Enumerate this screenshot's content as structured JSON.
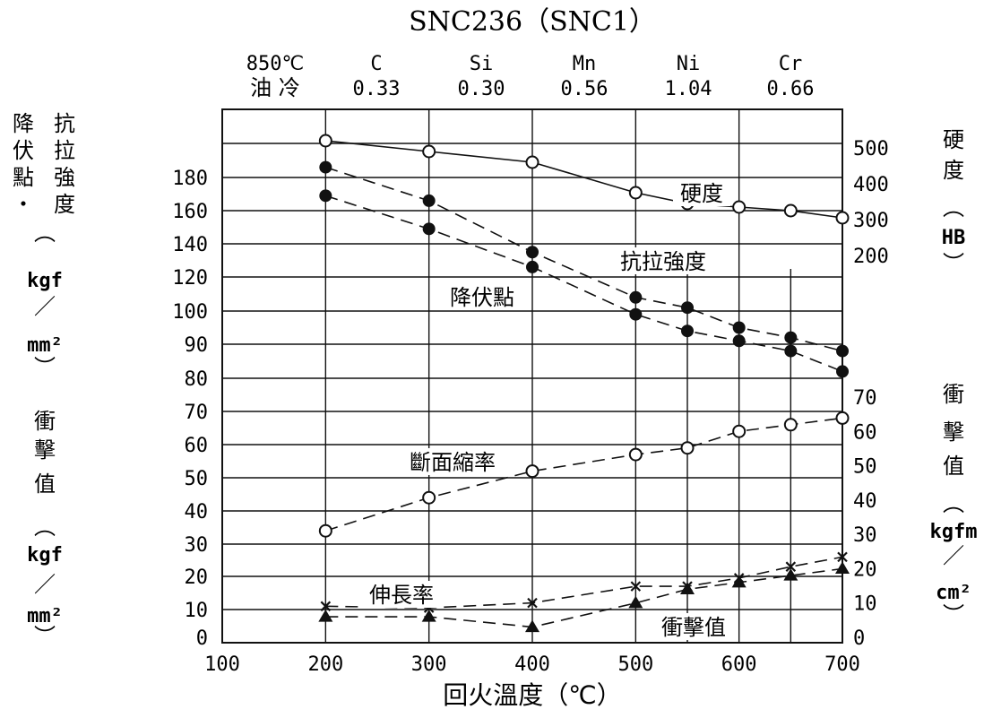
{
  "chart_data": {
    "type": "line",
    "title": "SNC236（SNC1）",
    "xlabel": "回火溫度（℃）",
    "x_ticks": [
      "100",
      "200",
      "300",
      "400",
      "500",
      "600",
      "700"
    ],
    "xlim": [
      100,
      700
    ],
    "left_axis": {
      "label_chars": [
        "降",
        "伏",
        "點",
        "・",
        "抗",
        "拉",
        "強",
        "度",
        "︵",
        "kgf",
        "／",
        "mm²",
        "︶"
      ],
      "label_lower_chars": [
        "衝",
        "擊",
        "值",
        "︵",
        "kgf",
        "／",
        "mm²",
        "︶"
      ],
      "ticks": [
        "0",
        "10",
        "20",
        "30",
        "40",
        "50",
        "60",
        "70",
        "80",
        "90",
        "100",
        "120",
        "140",
        "160",
        "180"
      ]
    },
    "right_axis_hardness": {
      "label_chars": [
        "硬",
        "度",
        "︵",
        "HB",
        "︶"
      ],
      "ticks": [
        "200",
        "300",
        "400",
        "500"
      ],
      "range": [
        100,
        500
      ]
    },
    "right_axis_impact": {
      "label_chars": [
        "衝",
        "擊",
        "值",
        "︵",
        "kgfm",
        "／",
        "cm²",
        "︶"
      ],
      "ticks": [
        "0",
        "10",
        "20",
        "30",
        "40",
        "50",
        "60",
        "70"
      ],
      "range": [
        0,
        70
      ]
    },
    "heat_treatment": [
      "850℃",
      "油 冷"
    ],
    "composition": [
      {
        "element": "C",
        "value": "0.33"
      },
      {
        "element": "Si",
        "value": "0.30"
      },
      {
        "element": "Mn",
        "value": "0.56"
      },
      {
        "element": "Ni",
        "value": "1.04"
      },
      {
        "element": "Cr",
        "value": "0.66"
      }
    ],
    "series": [
      {
        "name": "硬度",
        "axis": "hardness",
        "marker": "open-circle",
        "line": "solid",
        "x": [
          200,
          300,
          400,
          500,
          550,
          600,
          650,
          700
        ],
        "y": [
          520,
          490,
          460,
          375,
          345,
          335,
          325,
          305
        ]
      },
      {
        "name": "抗拉強度",
        "axis": "left",
        "marker": "filled-circle",
        "line": "dashed",
        "x": [
          200,
          300,
          400,
          500,
          550,
          600,
          650,
          700
        ],
        "y": [
          186,
          166,
          135,
          108,
          102,
          95,
          92,
          88
        ]
      },
      {
        "name": "降伏點",
        "axis": "left",
        "marker": "filled-circle",
        "line": "dashed",
        "x": [
          200,
          300,
          400,
          500,
          550,
          600,
          650,
          700
        ],
        "y": [
          169,
          149,
          126,
          99,
          94,
          91,
          88,
          82
        ]
      },
      {
        "name": "斷面縮率",
        "axis": "left",
        "marker": "open-circle",
        "line": "dashed",
        "x": [
          200,
          300,
          400,
          500,
          550,
          600,
          650,
          700
        ],
        "y": [
          34,
          44,
          52,
          57,
          59,
          64,
          66,
          68
        ]
      },
      {
        "name": "伸長率",
        "axis": "left",
        "marker": "cross",
        "line": "dashed",
        "x": [
          200,
          300,
          400,
          500,
          550,
          600,
          650,
          700
        ],
        "y": [
          11,
          10.5,
          12,
          17,
          17,
          19.5,
          23,
          26
        ]
      },
      {
        "name": "衝擊值",
        "axis": "impact",
        "marker": "filled-triangle",
        "line": "dashed",
        "x": [
          200,
          300,
          400,
          500,
          550,
          600,
          650,
          700
        ],
        "y": [
          6,
          6,
          3,
          10,
          14,
          16,
          18,
          20
        ]
      }
    ],
    "grid": true,
    "legend": "inline labels"
  }
}
